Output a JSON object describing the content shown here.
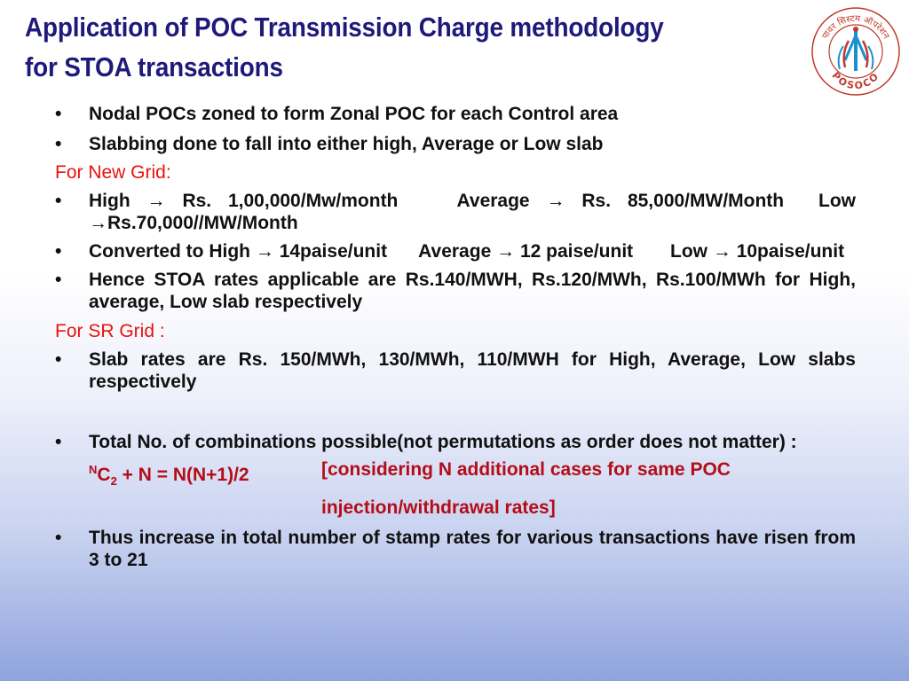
{
  "slide": {
    "title_line1": "Application of POC Transmission Charge methodology",
    "title_line2": "for STOA transactions",
    "logo_text": "पावर सिस्टम ऑपरेशन",
    "logo_brand": "POSOCO"
  },
  "bullet_symbol": "•",
  "arrow_symbol": "→",
  "items": {
    "b1": "Nodal POCs zoned to form Zonal POC for each Control area",
    "b2": "Slabbing done to fall into either high, Average or Low slab",
    "new_grid_header": "For New Grid:",
    "b3_high": "High",
    "b3_high_val": "Rs. 1,00,000/Mw/month",
    "b3_avg": "Average",
    "b3_avg_val": "Rs. 85,000/MW/Month",
    "b3_low": "Low",
    "b3_low_val": "Rs.70,000//MW/Month",
    "b4_pre": "Converted to High",
    "b4_high_val": "14paise/unit",
    "b4_avg": "Average",
    "b4_avg_val": "12 paise/unit",
    "b4_low": "Low",
    "b4_low_val": "10paise/unit",
    "b5": "Hence STOA rates applicable are Rs.140/MWH, Rs.120/MWh, Rs.100/MWh for High, average, Low slab respectively",
    "sr_grid_header": "For SR Grid :",
    "b6": "Slab rates are Rs. 150/MWh, 130/MWh, 110/MWH for High, Average, Low slabs respectively",
    "b7": "Total No. of combinations possible(not permutations as order does not matter) :",
    "formula_sup": "N",
    "formula_c": "C",
    "formula_sub": "2",
    "formula_rest": " + N  = N(N+1)/2",
    "formula_note_line1": "[considering N additional cases for same POC",
    "formula_note_line2": "injection/withdrawal rates]",
    "b8": "Thus increase in total number of stamp rates for various transactions have risen from 3 to 21"
  }
}
